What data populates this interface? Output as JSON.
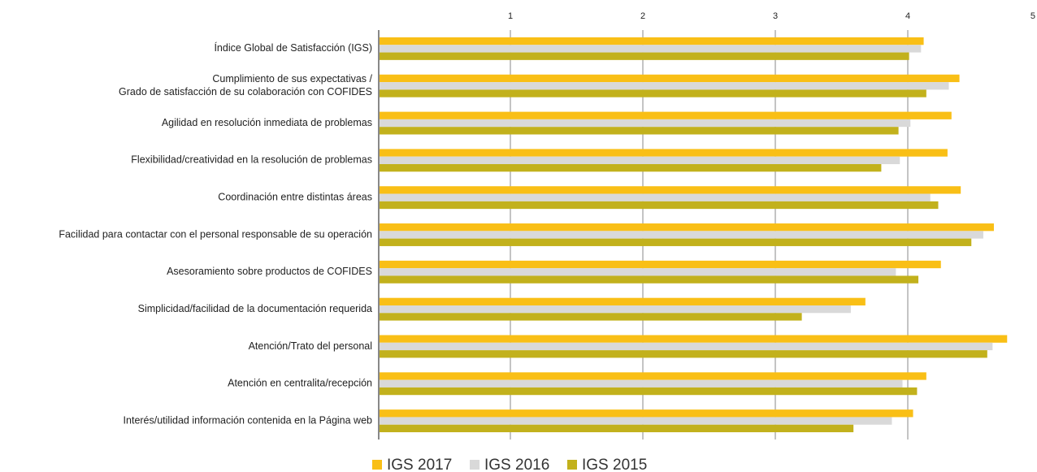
{
  "chart_data": {
    "type": "hbar",
    "categories": [
      "Índice Global de Satisfacción (IGS)",
      [
        "Cumplimiento de sus expectativas /",
        "Grado de satisfacción de su colaboración con COFIDES"
      ],
      "Agilidad en resolución inmediata de problemas",
      "Flexibilidad/creatividad en la resolución de problemas",
      "Coordinación entre distintas áreas",
      "Facilidad para contactar con el personal responsable de su operación",
      "Asesoramiento sobre productos de COFIDES",
      "Simplicidad/facilidad de la documentación requerida",
      "Atención/Trato del personal",
      "Atención en centralita/recepción",
      "Interés/utilidad información contenida en la Página web"
    ],
    "series": [
      {
        "name": "IGS 2017",
        "color": "#f9bf16",
        "values": [
          4.12,
          4.39,
          4.33,
          4.3,
          4.4,
          4.65,
          4.25,
          3.68,
          4.75,
          4.14,
          4.04
        ]
      },
      {
        "name": "IGS 2016",
        "color": "#d9d9d9",
        "values": [
          4.1,
          4.31,
          4.02,
          3.94,
          4.17,
          4.57,
          3.91,
          3.57,
          4.64,
          3.96,
          3.88
        ]
      },
      {
        "name": "IGS 2015",
        "color": "#c2b11c",
        "values": [
          4.01,
          4.14,
          3.93,
          3.8,
          4.23,
          4.48,
          4.08,
          3.2,
          4.6,
          4.07,
          3.59
        ]
      }
    ],
    "xlim": [
      0,
      5
    ],
    "xticks": [
      1,
      2,
      3,
      4,
      5
    ],
    "grid": true,
    "legend": "bottom"
  }
}
